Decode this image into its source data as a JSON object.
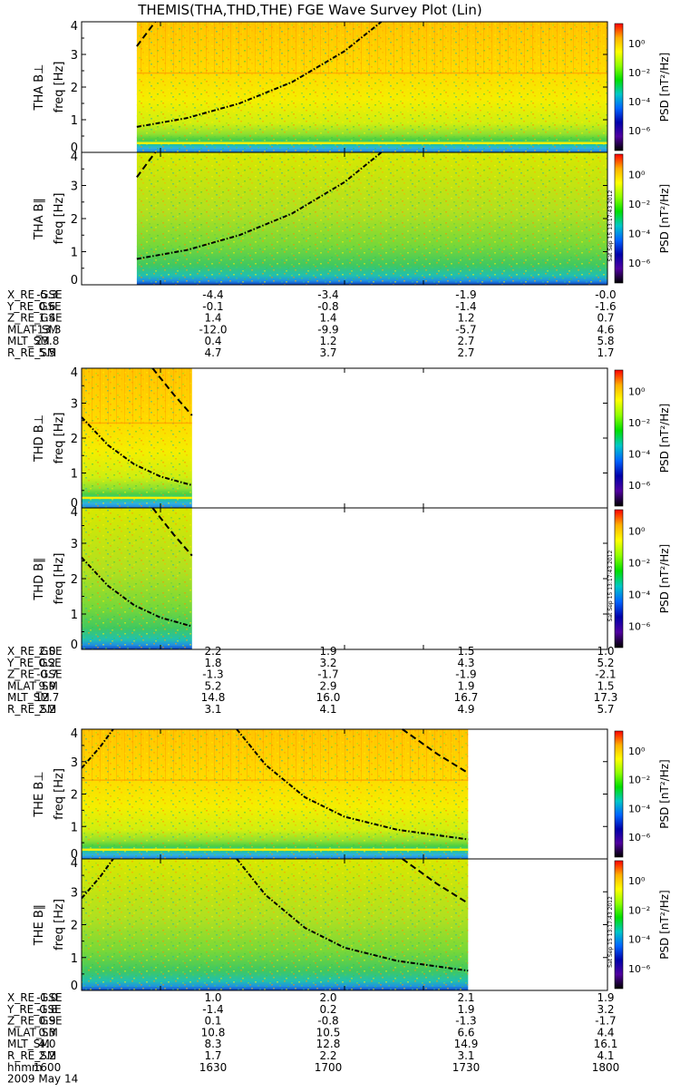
{
  "title": "THEMIS(THA,THD,THE) FGE Wave Survey Plot (Lin)",
  "date_label": "2009 May 14",
  "time_tick_label": "hhmm",
  "stamp": "Sat Sep 15 13:17:43 2012",
  "colorbar": {
    "label": "PSD [nT²/Hz]",
    "ticks": [
      "10⁰",
      "10⁻²",
      "10⁻⁴",
      "10⁻⁶"
    ],
    "colors": [
      "#ff0000",
      "#ffb000",
      "#ffff00",
      "#90ff00",
      "#00e000",
      "#00c8c8",
      "#0064ff",
      "#0000aa",
      "#5000a0",
      "#000000"
    ]
  },
  "chart_data": {
    "type": "heatmap",
    "x": {
      "range": [
        1600,
        1800
      ],
      "ticks": [
        1600,
        1630,
        1700,
        1730,
        1800
      ],
      "unit": "hhmm"
    },
    "y": {
      "range": [
        0,
        4
      ],
      "ticks": [
        "0",
        "1",
        "2",
        "3",
        "4"
      ],
      "label": "freq [Hz]"
    },
    "probes": [
      {
        "id": "THA",
        "panels": [
          {
            "ylabel": "THA B⊥",
            "component": "perp",
            "data_x": [
              1621,
              1800
            ],
            "ridge": "orange",
            "curves": [
              {
                "style": "dashdot",
                "points": [
                  [
                    1621,
                    0.78
                  ],
                  [
                    1640,
                    1.05
                  ],
                  [
                    1660,
                    1.5
                  ],
                  [
                    1680,
                    2.15
                  ],
                  [
                    1700,
                    3.1
                  ],
                  [
                    1714,
                    4.0
                  ]
                ]
              },
              {
                "style": "dash",
                "points": [
                  [
                    1621,
                    3.25
                  ],
                  [
                    1628,
                    4.0
                  ]
                ]
              }
            ]
          },
          {
            "ylabel": "THA B∥",
            "component": "par",
            "data_x": [
              1621,
              1800
            ],
            "ridge": "none",
            "curves": [
              {
                "style": "dashdot",
                "points": [
                  [
                    1621,
                    0.78
                  ],
                  [
                    1640,
                    1.05
                  ],
                  [
                    1660,
                    1.5
                  ],
                  [
                    1680,
                    2.15
                  ],
                  [
                    1700,
                    3.1
                  ],
                  [
                    1714,
                    4.0
                  ]
                ]
              },
              {
                "style": "dash",
                "points": [
                  [
                    1621,
                    3.25
                  ],
                  [
                    1628,
                    4.0
                  ]
                ]
              }
            ]
          }
        ],
        "position_labels": [
          "X_RE_GSE",
          "Y_RE_GSE",
          "Z_RE_GSE",
          "MLAT_SM",
          "MLT_SM",
          "R_RE_SM"
        ],
        "positions": [
          [
            "-5.3",
            "-4.4",
            "-3.4",
            "-1.9",
            "-0.0"
          ],
          [
            "0.6",
            "-0.1",
            "-0.8",
            "-1.4",
            "-1.6"
          ],
          [
            "1.4",
            "1.4",
            "1.4",
            "1.2",
            "0.7"
          ],
          [
            "-13.3",
            "-12.0",
            "-9.9",
            "-5.7",
            "4.6"
          ],
          [
            "23.8",
            "0.4",
            "1.2",
            "2.7",
            "5.8"
          ],
          [
            "5.5",
            "4.7",
            "3.7",
            "2.7",
            "1.7"
          ]
        ]
      },
      {
        "id": "THD",
        "panels": [
          {
            "ylabel": "THD B⊥",
            "component": "perp",
            "data_x": [
              1600,
              1642
            ],
            "ridge": "orange",
            "curves": [
              {
                "style": "dashdot",
                "points": [
                  [
                    1600,
                    2.6
                  ],
                  [
                    1610,
                    1.8
                  ],
                  [
                    1620,
                    1.25
                  ],
                  [
                    1630,
                    0.9
                  ],
                  [
                    1642,
                    0.65
                  ]
                ]
              },
              {
                "style": "dash",
                "points": [
                  [
                    1627,
                    4.0
                  ],
                  [
                    1635,
                    3.25
                  ],
                  [
                    1642,
                    2.65
                  ]
                ]
              }
            ]
          },
          {
            "ylabel": "THD B∥",
            "component": "par",
            "data_x": [
              1600,
              1642
            ],
            "ridge": "none",
            "curves": [
              {
                "style": "dashdot",
                "points": [
                  [
                    1600,
                    2.6
                  ],
                  [
                    1610,
                    1.8
                  ],
                  [
                    1620,
                    1.25
                  ],
                  [
                    1630,
                    0.9
                  ],
                  [
                    1642,
                    0.65
                  ]
                ]
              },
              {
                "style": "dash",
                "points": [
                  [
                    1627,
                    4.0
                  ],
                  [
                    1635,
                    3.25
                  ],
                  [
                    1642,
                    2.65
                  ]
                ]
              }
            ]
          }
        ],
        "position_labels": [
          "X_RE_GSE",
          "Y_RE_GSE",
          "Z_RE_GSE",
          "MLAT_SM",
          "MLT_SM",
          "R_RE_SM"
        ],
        "positions": [
          [
            "2.0",
            "2.2",
            "1.9",
            "1.5",
            "1.0"
          ],
          [
            "0.2",
            "1.8",
            "3.2",
            "4.3",
            "5.2"
          ],
          [
            "-0.7",
            "-1.3",
            "-1.7",
            "-1.9",
            "-2.1"
          ],
          [
            "9.9",
            "5.2",
            "2.9",
            "1.9",
            "1.5"
          ],
          [
            "12.7",
            "14.8",
            "16.0",
            "16.7",
            "17.3"
          ],
          [
            "2.2",
            "3.1",
            "4.1",
            "4.9",
            "5.7"
          ]
        ]
      },
      {
        "id": "THE",
        "panels": [
          {
            "ylabel": "THE B⊥",
            "component": "perp",
            "data_x": [
              1600,
              1747
            ],
            "ridge": "orange",
            "curves": [
              {
                "style": "dashdot",
                "points": [
                  [
                    1600,
                    2.8
                  ],
                  [
                    1607,
                    3.45
                  ],
                  [
                    1612,
                    4.0
                  ]
                ]
              },
              {
                "style": "dashdot",
                "points": [
                  [
                    1659,
                    4.0
                  ],
                  [
                    1670,
                    2.9
                  ],
                  [
                    1685,
                    1.9
                  ],
                  [
                    1700,
                    1.3
                  ],
                  [
                    1720,
                    0.9
                  ],
                  [
                    1747,
                    0.6
                  ]
                ]
              },
              {
                "style": "dash",
                "points": [
                  [
                    1722,
                    4.0
                  ],
                  [
                    1735,
                    3.25
                  ],
                  [
                    1747,
                    2.65
                  ]
                ]
              }
            ]
          },
          {
            "ylabel": "THE B∥",
            "component": "par",
            "data_x": [
              1600,
              1747
            ],
            "ridge": "none",
            "curves": [
              {
                "style": "dashdot",
                "points": [
                  [
                    1600,
                    2.8
                  ],
                  [
                    1607,
                    3.45
                  ],
                  [
                    1612,
                    4.0
                  ]
                ]
              },
              {
                "style": "dashdot",
                "points": [
                  [
                    1659,
                    4.0
                  ],
                  [
                    1670,
                    2.9
                  ],
                  [
                    1685,
                    1.9
                  ],
                  [
                    1700,
                    1.3
                  ],
                  [
                    1720,
                    0.9
                  ],
                  [
                    1747,
                    0.6
                  ]
                ]
              },
              {
                "style": "dash",
                "points": [
                  [
                    1722,
                    4.0
                  ],
                  [
                    1735,
                    3.25
                  ],
                  [
                    1747,
                    2.65
                  ]
                ]
              }
            ]
          }
        ],
        "position_labels": [
          "X_RE_GSE",
          "Y_RE_GSE",
          "Z_RE_GSE",
          "MLAT_SM",
          "MLT_SM",
          "R_RE_SM"
        ],
        "positions": [
          [
            "-1.0",
            "1.0",
            "2.0",
            "2.1",
            "1.9"
          ],
          [
            "-1.8",
            "-1.4",
            "0.2",
            "1.9",
            "3.2"
          ],
          [
            "0.9",
            "0.1",
            "-0.8",
            "-1.3",
            "-1.7"
          ],
          [
            "0.3",
            "10.8",
            "10.5",
            "6.6",
            "4.4"
          ],
          [
            "4.0",
            "8.3",
            "12.8",
            "14.9",
            "16.1"
          ],
          [
            "2.2",
            "1.7",
            "2.2",
            "3.1",
            "4.1"
          ]
        ]
      }
    ]
  }
}
